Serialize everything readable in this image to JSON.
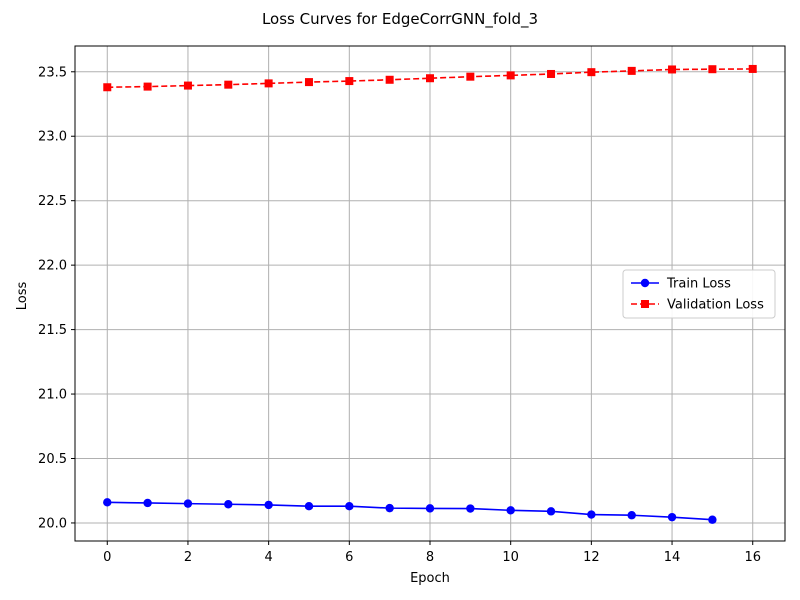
{
  "chart_data": {
    "type": "line",
    "title": "Loss Curves for EdgeCorrGNN_fold_3",
    "xlabel": "Epoch",
    "ylabel": "Loss",
    "xlim": [
      -0.8,
      16.8
    ],
    "ylim": [
      19.86,
      23.7
    ],
    "xticks": [
      0,
      2,
      4,
      6,
      8,
      10,
      12,
      14,
      16
    ],
    "yticks": [
      20.0,
      20.5,
      21.0,
      21.5,
      22.0,
      22.5,
      23.0,
      23.5
    ],
    "grid": true,
    "legend_position": "center-right",
    "series": [
      {
        "name": "Train Loss",
        "color": "#0000ff",
        "line_style": "solid",
        "marker": "circle",
        "x": [
          0,
          1,
          2,
          3,
          4,
          5,
          6,
          7,
          8,
          9,
          10,
          11,
          12,
          13,
          14,
          15
        ],
        "y": [
          20.16,
          20.155,
          20.15,
          20.145,
          20.14,
          20.13,
          20.13,
          20.115,
          20.113,
          20.112,
          20.098,
          20.09,
          20.065,
          20.06,
          20.045,
          20.025
        ]
      },
      {
        "name": "Validation Loss",
        "color": "#ff0000",
        "line_style": "dashed",
        "marker": "square",
        "x": [
          0,
          1,
          2,
          3,
          4,
          5,
          6,
          7,
          8,
          9,
          10,
          11,
          12,
          13,
          14,
          15,
          16
        ],
        "y": [
          23.38,
          23.385,
          23.393,
          23.4,
          23.41,
          23.42,
          23.428,
          23.438,
          23.45,
          23.462,
          23.472,
          23.483,
          23.497,
          23.507,
          23.518,
          23.52,
          23.522
        ]
      }
    ]
  }
}
